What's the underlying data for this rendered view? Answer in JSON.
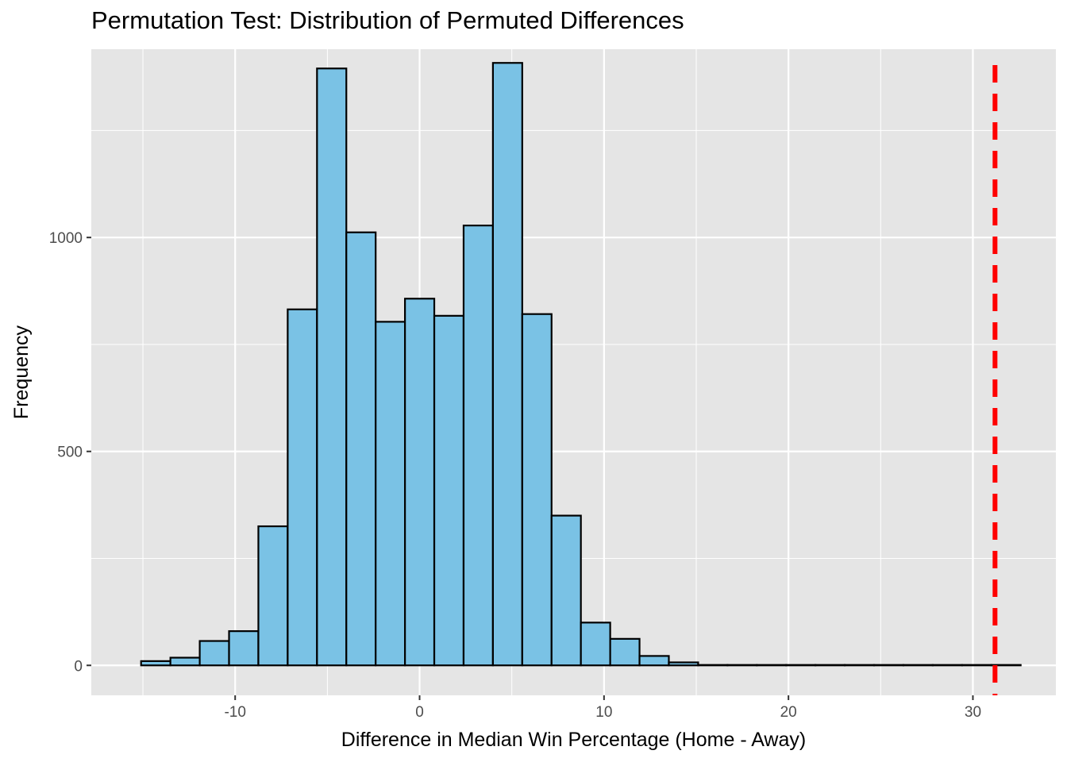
{
  "chart_data": {
    "type": "bar",
    "subtype": "histogram",
    "title": "Permutation Test: Distribution of Permuted Differences",
    "xlabel": "Difference in Median Win Percentage (Home  - Away)",
    "ylabel": "Frequency",
    "x_ticks": [
      -10,
      0,
      10,
      20,
      30
    ],
    "y_ticks": [
      0,
      500,
      1000
    ],
    "xlim": [
      -17.8,
      34.5
    ],
    "ylim": [
      -70,
      1440
    ],
    "bin_width": 1.5897,
    "bin_start": -15.1,
    "values": [
      10,
      18,
      57,
      80,
      325,
      832,
      1395,
      1012,
      803,
      857,
      817,
      1028,
      1408,
      821,
      350,
      100,
      62,
      22,
      7,
      1,
      1,
      1,
      1,
      1,
      1,
      1,
      1,
      1,
      1,
      1
    ],
    "observed_difference": 31.2,
    "colors": {
      "panel_background": "#e5e5e5",
      "grid": "#ffffff",
      "bar_fill": "#7ac2e5",
      "bar_stroke": "#000000",
      "reference_line": "#ff0000"
    },
    "grid": true,
    "legend": "none"
  }
}
